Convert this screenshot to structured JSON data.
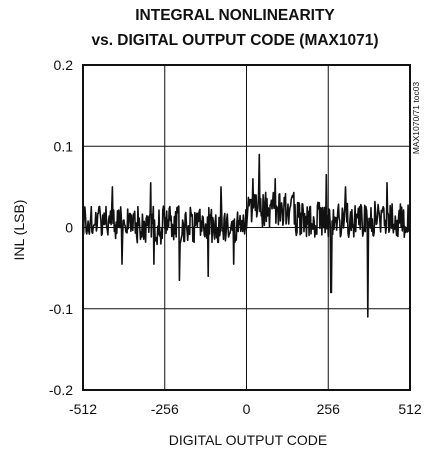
{
  "chart_data": {
    "type": "line",
    "title_lines": [
      "INTEGRAL NONLINEARITY",
      "vs. DIGITAL OUTPUT CODE (MAX1071)"
    ],
    "xlabel": "DIGITAL OUTPUT CODE",
    "ylabel": "INL (LSB)",
    "xlim": [
      -512,
      512
    ],
    "ylim": [
      -0.2,
      0.2
    ],
    "xticks": [
      -512,
      -256,
      0,
      256,
      512
    ],
    "xtick_labels": [
      "-512",
      "-256",
      "0",
      "256",
      "512"
    ],
    "yticks": [
      0.2,
      0.1,
      0,
      -0.1,
      -0.2
    ],
    "ytick_labels": [
      "0.2",
      "0.1",
      "0",
      "-0.1",
      "-0.2"
    ],
    "grid": true,
    "line_color": "#111111",
    "note": "MAX1070/71 toc03",
    "series": [
      {
        "name": "",
        "segments": [
          {
            "x_range": [
              -512,
              -350
            ],
            "mean": 0.005,
            "amplitude": 0.022,
            "peaks": [
              [
                -420,
                0.05
              ],
              [
                -390,
                -0.045
              ]
            ]
          },
          {
            "x_range": [
              -350,
              -200
            ],
            "mean": 0.003,
            "amplitude": 0.024,
            "peaks": [
              [
                -300,
                0.055
              ],
              [
                -290,
                -0.045
              ],
              [
                -210,
                -0.065
              ]
            ]
          },
          {
            "x_range": [
              -200,
              0
            ],
            "mean": 0.003,
            "amplitude": 0.022,
            "peaks": [
              [
                -120,
                -0.06
              ],
              [
                -80,
                0.05
              ],
              [
                -40,
                -0.045
              ]
            ]
          },
          {
            "x_range": [
              0,
              150
            ],
            "mean": 0.022,
            "amplitude": 0.022,
            "peaks": [
              [
                20,
                0.06
              ],
              [
                40,
                0.09
              ],
              [
                90,
                0.06
              ]
            ]
          },
          {
            "x_range": [
              150,
              512
            ],
            "mean": 0.01,
            "amplitude": 0.022,
            "peaks": [
              [
                250,
                0.065
              ],
              [
                265,
                -0.08
              ],
              [
                310,
                0.05
              ],
              [
                380,
                -0.11
              ],
              [
                440,
                0.055
              ]
            ]
          }
        ]
      }
    ]
  }
}
